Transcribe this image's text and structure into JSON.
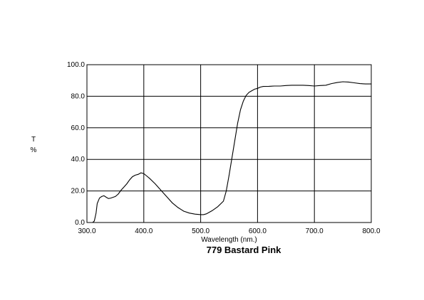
{
  "chart_data": {
    "type": "line",
    "title": "779 Bastard Pink",
    "xlabel": "Wavelength (nm.)",
    "ylabel_top": "T",
    "ylabel_bottom": "%",
    "xlim": [
      300,
      800
    ],
    "ylim": [
      0,
      100
    ],
    "xticks": [
      "300.0",
      "400.0",
      "500.0",
      "600.0",
      "700.0",
      "800.0"
    ],
    "yticks": [
      "0.0",
      "20.0",
      "40.0",
      "60.0",
      "80.0",
      "100.0"
    ],
    "grid": true,
    "series": [
      {
        "color": "#000000",
        "x": [
          300,
          310,
          313,
          316,
          318,
          322,
          326,
          330,
          334,
          338,
          342,
          346,
          350,
          355,
          360,
          365,
          370,
          375,
          380,
          385,
          390,
          395,
          400,
          405,
          410,
          420,
          430,
          440,
          450,
          460,
          470,
          480,
          490,
          500,
          505,
          510,
          515,
          520,
          530,
          540,
          545,
          550,
          555,
          560,
          565,
          570,
          575,
          580,
          585,
          590,
          595,
          600,
          605,
          610,
          620,
          630,
          640,
          650,
          660,
          670,
          680,
          690,
          700,
          710,
          720,
          730,
          740,
          750,
          760,
          770,
          780,
          790,
          800
        ],
        "y": [
          0.0,
          0.0,
          1.0,
          6.0,
          12.0,
          15.5,
          16.5,
          17.0,
          16.0,
          15.2,
          15.5,
          16.0,
          16.5,
          18.0,
          20.5,
          22.5,
          24.5,
          27.0,
          29.0,
          30.0,
          30.5,
          31.5,
          31.0,
          29.5,
          28.0,
          24.5,
          20.5,
          16.5,
          12.5,
          9.5,
          7.2,
          6.0,
          5.3,
          5.0,
          5.0,
          5.5,
          6.5,
          7.5,
          10.0,
          13.5,
          20.0,
          30.0,
          41.0,
          52.0,
          63.0,
          71.5,
          77.0,
          80.5,
          82.5,
          83.5,
          84.5,
          85.0,
          85.8,
          86.2,
          86.3,
          86.5,
          86.5,
          86.8,
          87.0,
          87.0,
          87.0,
          86.8,
          86.5,
          86.8,
          87.0,
          88.0,
          88.7,
          89.2,
          89.0,
          88.5,
          88.0,
          87.8,
          87.8
        ]
      }
    ]
  }
}
